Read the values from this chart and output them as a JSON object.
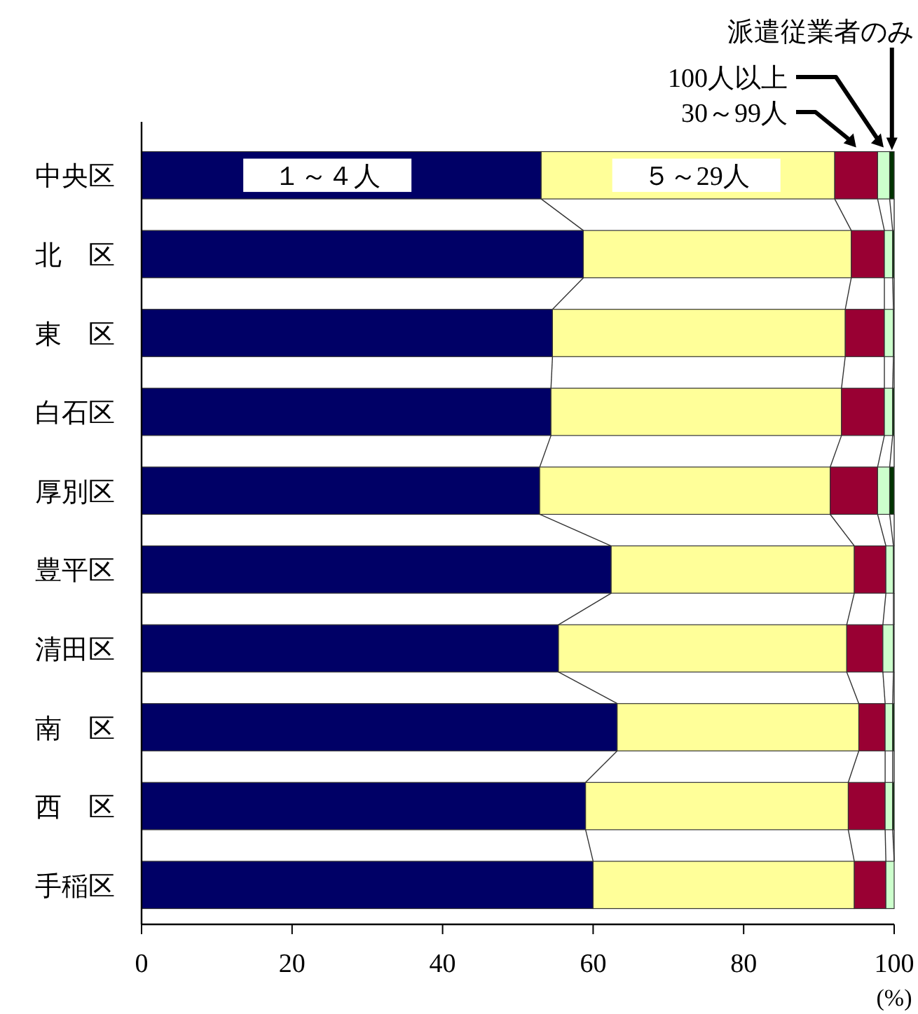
{
  "chart_data": {
    "type": "bar",
    "orientation": "horizontal",
    "stacked": true,
    "xlabel": "(%)",
    "categories": [
      "中央区",
      "北　区",
      "東　区",
      "白石区",
      "厚別区",
      "豊平区",
      "清田区",
      "南　区",
      "西　区",
      "手稲区"
    ],
    "xlim": [
      0,
      100
    ],
    "xticks": [
      0,
      20,
      40,
      60,
      80,
      100
    ],
    "series": [
      {
        "name": "１～４人",
        "color": "#000066",
        "values": [
          53.1,
          58.7,
          54.6,
          54.4,
          52.9,
          62.4,
          55.4,
          63.2,
          59.0,
          60.0
        ]
      },
      {
        "name": "５～29人",
        "color": "#ffff99",
        "values": [
          39.0,
          35.6,
          38.9,
          38.6,
          38.6,
          32.3,
          38.3,
          32.1,
          34.9,
          34.7
        ]
      },
      {
        "name": "30～99人",
        "color": "#990033",
        "values": [
          5.7,
          4.4,
          5.2,
          5.7,
          6.3,
          4.2,
          4.8,
          3.5,
          4.9,
          4.2
        ]
      },
      {
        "name": "100人以上",
        "color": "#ccffcc",
        "values": [
          1.6,
          1.1,
          1.2,
          1.1,
          1.6,
          1.0,
          1.4,
          1.0,
          1.0,
          1.1
        ]
      },
      {
        "name": "派遣従業者のみ",
        "color": "#003300",
        "values": [
          0.6,
          0.2,
          0.1,
          0.2,
          0.6,
          0.1,
          0.1,
          0.2,
          0.2,
          0.0
        ]
      }
    ]
  }
}
